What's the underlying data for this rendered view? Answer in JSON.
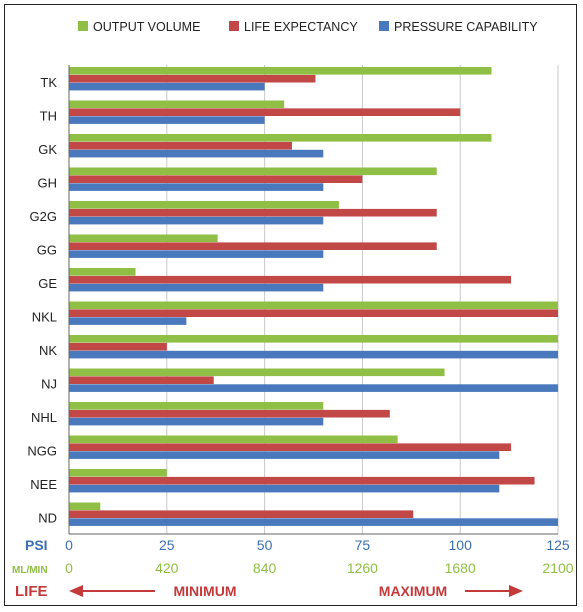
{
  "chart_data": {
    "type": "bar",
    "orientation": "horizontal",
    "categories": [
      "TK",
      "TH",
      "GK",
      "GH",
      "G2G",
      "GG",
      "GE",
      "NKL",
      "NK",
      "NJ",
      "NHL",
      "NGG",
      "NEE",
      "ND"
    ],
    "series": [
      {
        "name": "OUTPUT VOLUME",
        "color": "#8fbf44",
        "values": [
          108,
          55,
          108,
          94,
          69,
          38,
          17,
          125,
          125,
          96,
          65,
          84,
          25,
          8
        ]
      },
      {
        "name": "LIFE EXPECTANCY",
        "color": "#c24747",
        "values": [
          63,
          100,
          57,
          75,
          94,
          94,
          113,
          125,
          25,
          37,
          82,
          113,
          119,
          88
        ]
      },
      {
        "name": "PRESSURE CAPABILITY",
        "color": "#4a78bd",
        "values": [
          50,
          50,
          65,
          65,
          65,
          65,
          65,
          30,
          125,
          125,
          65,
          110,
          110,
          125
        ]
      }
    ],
    "xlim": [
      0,
      125
    ],
    "x_ticks": [
      "0",
      "25",
      "50",
      "75",
      "100",
      "125"
    ],
    "psi_label": "PSI",
    "ml_label": "ML/MIN",
    "ml_ticks": [
      "0",
      "420",
      "840",
      "1260",
      "1680",
      "2100"
    ],
    "life_label": "LIFE",
    "minimum_label": "MINIMUM",
    "maximum_label": "MAXIMUM",
    "legend_position": "top",
    "grid": "vertical"
  }
}
